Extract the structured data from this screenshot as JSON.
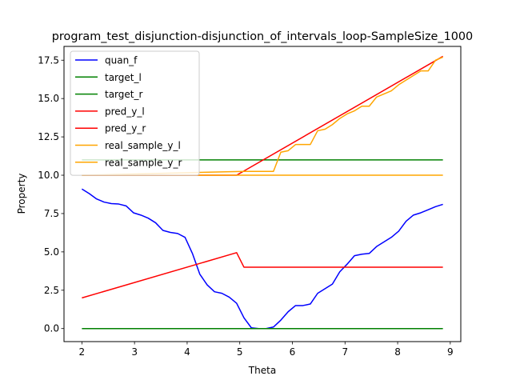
{
  "chart_data": {
    "type": "line",
    "title": "program_test_disjunction-disjunction_of_intervals_loop-SampleSize_1000",
    "xlabel": "Theta",
    "ylabel": "Property",
    "xlim": [
      1.66,
      9.2
    ],
    "ylim": [
      -0.85,
      18.4
    ],
    "xticks": [
      2,
      3,
      4,
      5,
      6,
      7,
      8,
      9
    ],
    "yticks": [
      0.0,
      2.5,
      5.0,
      7.5,
      10.0,
      12.5,
      15.0,
      17.5
    ],
    "xtick_labels": [
      "2",
      "3",
      "4",
      "5",
      "6",
      "7",
      "8",
      "9"
    ],
    "ytick_labels": [
      "0.0",
      "2.5",
      "5.0",
      "7.5",
      "10.0",
      "12.5",
      "15.0",
      "17.5"
    ],
    "grid": false,
    "legend_position": "upper-left",
    "series": [
      {
        "name": "quan_f",
        "color": "#0000ff",
        "x": [
          2.0,
          2.14,
          2.28,
          2.42,
          2.56,
          2.7,
          2.84,
          2.98,
          3.12,
          3.26,
          3.4,
          3.54,
          3.68,
          3.82,
          3.96,
          4.1,
          4.24,
          4.38,
          4.52,
          4.66,
          4.8,
          4.94,
          5.08,
          5.22,
          5.36,
          5.5,
          5.64,
          5.78,
          5.92,
          6.06,
          6.2,
          6.34,
          6.48,
          6.62,
          6.76,
          6.9,
          7.04,
          7.18,
          7.32,
          7.46,
          7.6,
          7.74,
          7.88,
          8.02,
          8.16,
          8.3,
          8.44,
          8.58,
          8.72,
          8.86
        ],
        "y": [
          9.1,
          8.8,
          8.45,
          8.25,
          8.15,
          8.12,
          8.0,
          7.55,
          7.4,
          7.2,
          6.9,
          6.4,
          6.27,
          6.2,
          5.95,
          4.9,
          3.55,
          2.85,
          2.4,
          2.3,
          2.05,
          1.65,
          0.7,
          0.05,
          0.0,
          0.0,
          0.1,
          0.55,
          1.1,
          1.5,
          1.5,
          1.6,
          2.3,
          2.6,
          2.9,
          3.7,
          4.2,
          4.75,
          4.85,
          4.9,
          5.35,
          5.65,
          5.95,
          6.35,
          7.0,
          7.4,
          7.55,
          7.75,
          7.95,
          8.1
        ]
      },
      {
        "name": "target_l",
        "color": "#008000",
        "x": [
          2.0,
          8.86
        ],
        "y": [
          0.0,
          0.0
        ]
      },
      {
        "name": "target_r",
        "color": "#008000",
        "x": [
          2.0,
          8.86
        ],
        "y": [
          11.0,
          11.0
        ]
      },
      {
        "name": "pred_y_l",
        "color": "#ff0000",
        "x": [
          2.0,
          4.94,
          5.08,
          8.86
        ],
        "y": [
          2.0,
          4.95,
          4.0,
          4.0
        ]
      },
      {
        "name": "pred_y_r",
        "color": "#ff0000",
        "x": [
          2.0,
          4.94,
          8.86
        ],
        "y": [
          10.0,
          10.0,
          17.75
        ]
      },
      {
        "name": "real_sample_y_l",
        "color": "#ffa500",
        "x": [
          2.0,
          5.08,
          5.22,
          5.36,
          5.5,
          5.64,
          5.78,
          5.92,
          6.06,
          6.2,
          6.34,
          6.48,
          6.62,
          6.76,
          6.9,
          7.04,
          7.18,
          7.32,
          7.46,
          7.6,
          7.74,
          7.88,
          8.02,
          8.16,
          8.3,
          8.44,
          8.58,
          8.72,
          8.86
        ],
        "y": [
          10.0,
          10.25,
          10.25,
          10.25,
          10.25,
          10.25,
          11.5,
          11.6,
          12.0,
          12.0,
          12.0,
          12.9,
          13.0,
          13.3,
          13.7,
          14.0,
          14.2,
          14.5,
          14.5,
          15.1,
          15.3,
          15.5,
          15.9,
          16.2,
          16.5,
          16.8,
          16.8,
          17.5,
          17.7
        ]
      },
      {
        "name": "real_sample_y_r",
        "color": "#ffa500",
        "x": [
          2.0,
          8.86
        ],
        "y": [
          10.0,
          10.0
        ]
      }
    ]
  }
}
